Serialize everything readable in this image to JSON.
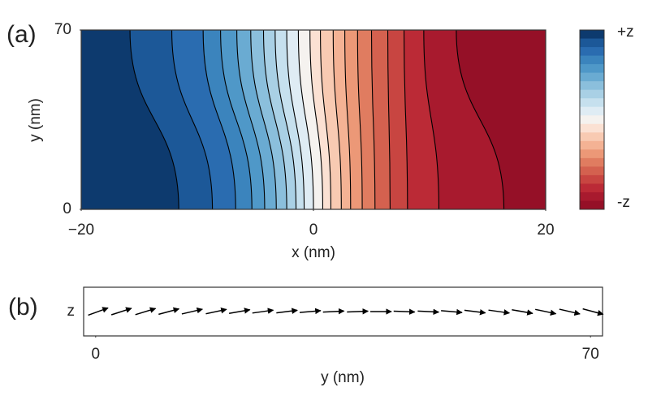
{
  "chart_data": [
    {
      "type": "contour",
      "panel_label": "(a)",
      "xlabel": "x (nm)",
      "ylabel": "y (nm)",
      "xlim": [
        -20,
        20
      ],
      "xticks": [
        {
          "value": -20,
          "label": "−20"
        },
        0,
        20
      ],
      "ylim": [
        0,
        70
      ],
      "yticks": [
        0,
        70
      ],
      "contour_x_top": [
        -15.8,
        -12.2,
        -9.5,
        -8.0,
        -6.6,
        -5.4,
        -4.3,
        -3.3,
        -2.3,
        -1.3,
        -0.3,
        0.6,
        1.7,
        2.7,
        3.8,
        5.0,
        6.4,
        7.8,
        9.5,
        12.3
      ],
      "contour_x_bottom": [
        -11.6,
        -8.7,
        -6.7,
        -5.3,
        -4.2,
        -3.2,
        -2.3,
        -1.5,
        -0.8,
        0.0,
        0.8,
        1.5,
        2.4,
        3.2,
        4.2,
        5.3,
        6.6,
        8.1,
        10.8,
        16.4
      ],
      "colors": [
        "#0d3a6e",
        "#1c5898",
        "#2a6cb0",
        "#3b84bd",
        "#4f98c8",
        "#6aabd2",
        "#8bbfdc",
        "#a9d0e5",
        "#c6e0ee",
        "#dfecf4",
        "#f5f2ef",
        "#fbe1d3",
        "#f8cab2",
        "#f4b294",
        "#ec9877",
        "#e07c60",
        "#d4614f",
        "#c84541",
        "#bb2a36",
        "#a81a2e",
        "#951027"
      ],
      "line_color": "#000000",
      "colorbar_labels": [
        "+z",
        "-z"
      ]
    },
    {
      "type": "quiver",
      "panel_label": "(b)",
      "xlabel": "y (nm)",
      "ylabel": "z",
      "xlim": [
        -1.7,
        71.7
      ],
      "xticks": [
        0,
        70
      ],
      "x": [
        0,
        3.3,
        6.7,
        10,
        13.3,
        16.7,
        20,
        23.3,
        26.7,
        30,
        33.3,
        36.7,
        40,
        43.3,
        46.7,
        50,
        53.3,
        56.7,
        60,
        63.3,
        66.7,
        70
      ],
      "angles": [
        20,
        18,
        17,
        15,
        13,
        12,
        10,
        8,
        7,
        5,
        3,
        2,
        0,
        -2,
        -3,
        -5,
        -7,
        -8,
        -10,
        -12,
        -13,
        -15
      ],
      "color": "#000000"
    }
  ]
}
